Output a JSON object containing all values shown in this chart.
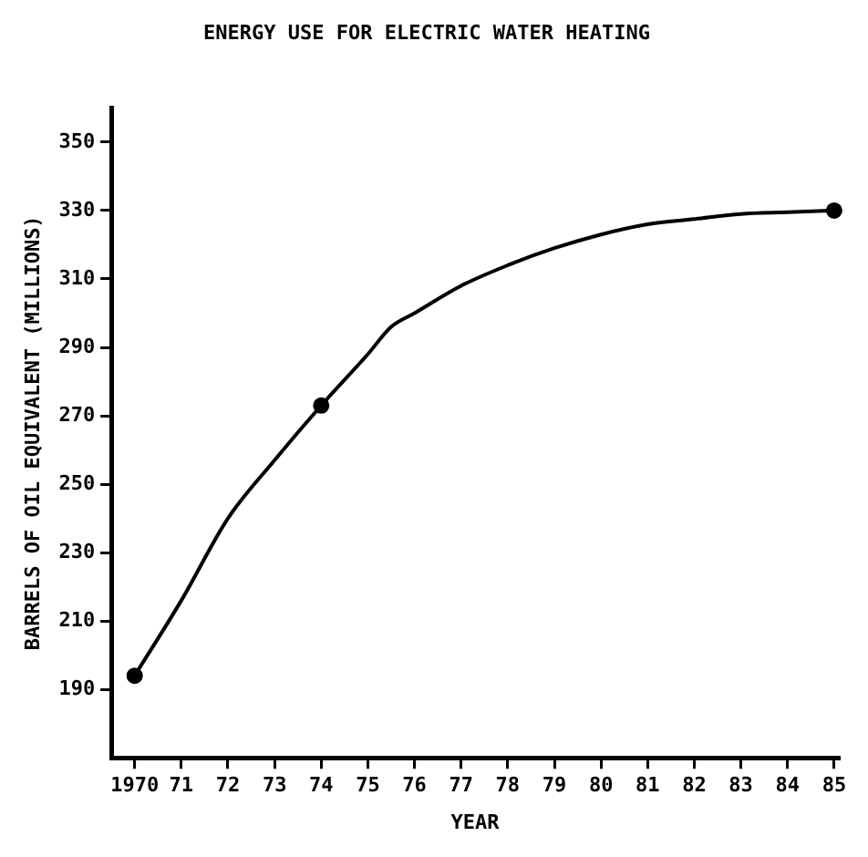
{
  "chart_data": {
    "type": "line",
    "title": "ENERGY USE FOR ELECTRIC WATER HEATING",
    "xlabel": "YEAR",
    "ylabel": "BARRELS OF OIL EQUIVALENT (MILLIONS)",
    "x": [
      1970,
      1971,
      1972,
      1973,
      1974,
      1975,
      1975.5,
      1976,
      1977,
      1978,
      1979,
      1980,
      1981,
      1982,
      1983,
      1984,
      1985
    ],
    "series": [
      {
        "color": "#000000",
        "marker": "none",
        "values": [
          194,
          216,
          240,
          257,
          273,
          288,
          296,
          300,
          308,
          314,
          319,
          323,
          326,
          327.5,
          329,
          329.5,
          330
        ]
      },
      {
        "type": "scatter",
        "color": "#000000",
        "marker": "circle",
        "x": [
          1970,
          1974,
          1985
        ],
        "values": [
          194,
          273,
          330
        ]
      }
    ],
    "xlim": [
      1969.5,
      1985.1
    ],
    "xticks": [
      {
        "value": 1970,
        "label": "1970"
      },
      {
        "value": 1971,
        "label": "71"
      },
      {
        "value": 1972,
        "label": "72"
      },
      {
        "value": 1973,
        "label": "73"
      },
      {
        "value": 1974,
        "label": "74"
      },
      {
        "value": 1975,
        "label": "75"
      },
      {
        "value": 1976,
        "label": "76"
      },
      {
        "value": 1977,
        "label": "77"
      },
      {
        "value": 1978,
        "label": "78"
      },
      {
        "value": 1979,
        "label": "79"
      },
      {
        "value": 1980,
        "label": "80"
      },
      {
        "value": 1981,
        "label": "81"
      },
      {
        "value": 1982,
        "label": "82"
      },
      {
        "value": 1983,
        "label": "83"
      },
      {
        "value": 1984,
        "label": "84"
      },
      {
        "value": 1985,
        "label": "85"
      }
    ],
    "ylim": [
      170,
      360
    ],
    "yticks": [
      190,
      210,
      230,
      250,
      270,
      290,
      310,
      330,
      350
    ],
    "grid": false,
    "legend": false
  }
}
